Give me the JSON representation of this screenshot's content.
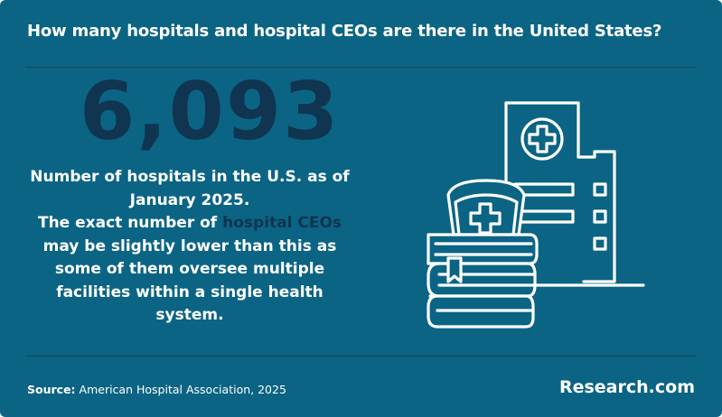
{
  "header": {
    "title": "How many hospitals and hospital CEOs are there in the United States?"
  },
  "stat": {
    "value": "6,093",
    "line1": "Number of hospitals in the U.S. as of January 2025.",
    "line2_before": "The exact number of ",
    "line2_highlight": "hospital CEOs",
    "line2_after": " may be slightly lower than this as some of them oversee multiple facilities within a single health system."
  },
  "illustration": {
    "icon_name": "hospital-building-with-nurse-cap-and-books-icon"
  },
  "footer": {
    "source_label": "Source:",
    "source_text": "American Hospital Association, 2025",
    "brand": "Research.com"
  },
  "colors": {
    "background": "#0b6484",
    "accent_dark": "#0f3550",
    "text": "#ffffff"
  }
}
